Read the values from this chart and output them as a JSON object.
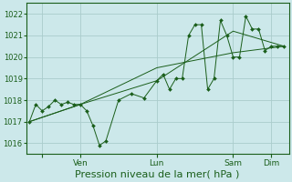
{
  "background_color": "#cce8ea",
  "grid_color": "#aacccc",
  "line_color": "#1a5e1a",
  "marker_color": "#1a5e1a",
  "xlabel": "Pression niveau de la mer( hPa )",
  "xlabel_fontsize": 8,
  "tick_label_color": "#1a5e1a",
  "ylim": [
    1015.5,
    1022.5
  ],
  "yticks": [
    1016,
    1017,
    1018,
    1019,
    1020,
    1021,
    1022
  ],
  "ytick_fontsize": 6,
  "xtick_fontsize": 6.5,
  "x_day_positions": [
    8,
    32,
    80,
    128,
    152
  ],
  "x_day_labels": [
    "",
    "Ven",
    "Lun",
    "Sam",
    "Dim"
  ],
  "series1_x": [
    0,
    4,
    8,
    12,
    16,
    20,
    24,
    28,
    32,
    36,
    40,
    44,
    48,
    56,
    64,
    72,
    80,
    84,
    88,
    92,
    96,
    100,
    104,
    108,
    112,
    116,
    120,
    124,
    128,
    132,
    136,
    140,
    144,
    148,
    152,
    156,
    160
  ],
  "series1_y": [
    1017.0,
    1017.8,
    1017.5,
    1017.7,
    1018.0,
    1017.8,
    1017.9,
    1017.8,
    1017.8,
    1017.5,
    1016.8,
    1015.9,
    1016.1,
    1018.0,
    1018.3,
    1018.1,
    1018.9,
    1019.2,
    1018.5,
    1019.0,
    1019.0,
    1021.0,
    1021.5,
    1021.5,
    1018.5,
    1019.0,
    1021.7,
    1021.0,
    1020.0,
    1020.0,
    1021.9,
    1021.3,
    1021.3,
    1020.3,
    1020.5,
    1020.5,
    1020.5
  ],
  "series2_x": [
    0,
    32,
    80,
    128,
    160
  ],
  "series2_y": [
    1017.0,
    1017.8,
    1018.9,
    1021.2,
    1020.5
  ],
  "series3_x": [
    0,
    32,
    80,
    128,
    160
  ],
  "series3_y": [
    1017.0,
    1017.8,
    1019.5,
    1020.2,
    1020.5
  ]
}
